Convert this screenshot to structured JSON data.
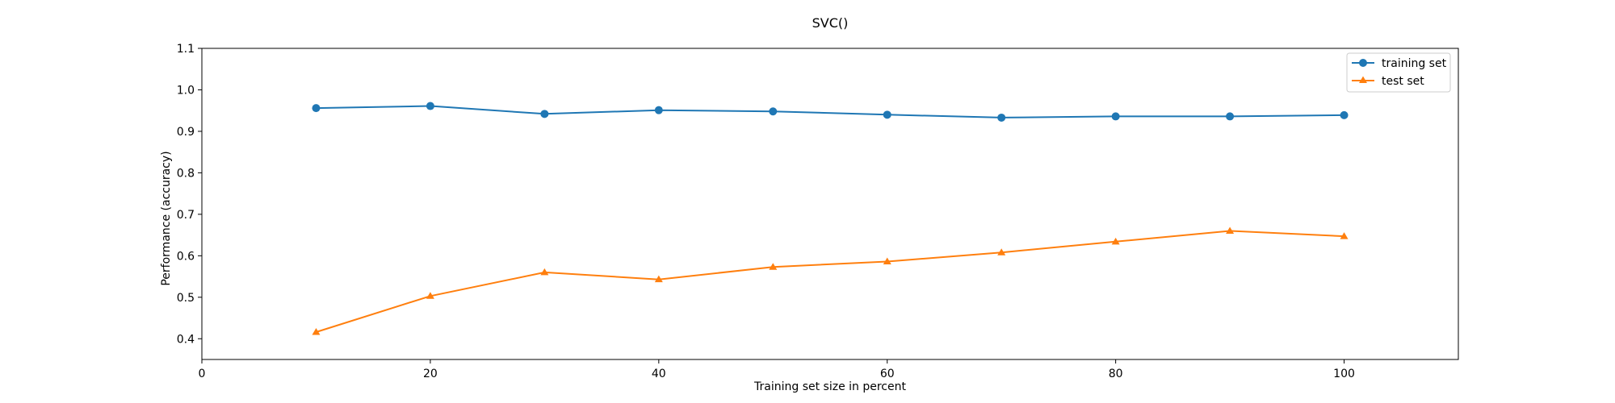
{
  "chart_data": {
    "type": "line",
    "title": "SVC()",
    "xlabel": "Training set size in percent",
    "ylabel": "Performance (accuracy)",
    "xlim": [
      0,
      110
    ],
    "ylim": [
      0.35,
      1.1
    ],
    "xticks": [
      0,
      20,
      40,
      60,
      80,
      100
    ],
    "yticks": [
      0.4,
      0.5,
      0.6,
      0.7,
      0.8,
      0.9,
      1.0,
      1.1
    ],
    "grid": false,
    "legend_position": "top-right",
    "x": [
      10,
      20,
      30,
      40,
      50,
      60,
      70,
      80,
      90,
      100
    ],
    "series": [
      {
        "name": "training set",
        "marker": "circle",
        "color": "#1f77b4",
        "values": [
          0.956,
          0.961,
          0.942,
          0.951,
          0.948,
          0.94,
          0.933,
          0.936,
          0.936,
          0.939
        ]
      },
      {
        "name": "test set",
        "marker": "triangle",
        "color": "#ff7f0e",
        "values": [
          0.416,
          0.503,
          0.56,
          0.543,
          0.573,
          0.586,
          0.608,
          0.634,
          0.66,
          0.647
        ]
      }
    ]
  }
}
